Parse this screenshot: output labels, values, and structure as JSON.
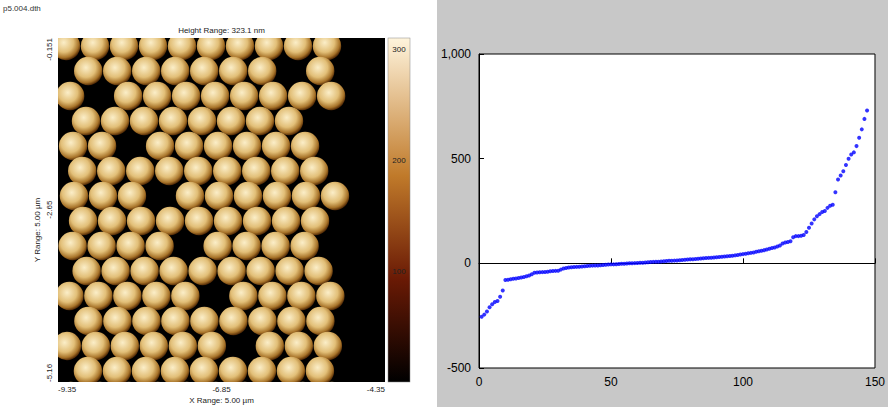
{
  "image_panel": {
    "file_name": "p5.004.dth",
    "title": "Height Range: 323.1 nm",
    "y_axis_label": "Y Range: 5.00 µm",
    "x_axis_label": "X Range: 5.00 µm",
    "xlim": [
      -9.35,
      -4.35
    ],
    "xticks": [
      -9.35,
      -6.85,
      -4.35
    ],
    "ylim": [
      -5.16,
      -0.151
    ],
    "yticks": [
      -0.151,
      -2.65,
      -5.16
    ],
    "colorbar_lim": [
      0,
      310
    ],
    "colorbar_ticks": [
      100,
      200,
      300
    ]
  },
  "chart_data": {
    "type": "scatter",
    "color": "#0000ff",
    "marker": "circle",
    "grid": false,
    "xlim": [
      0,
      150
    ],
    "xticks": [
      0,
      50,
      100,
      150
    ],
    "ylim": [
      -500,
      1000
    ],
    "yticks": [
      -500,
      0,
      500,
      1000
    ],
    "x": [
      1,
      2,
      3,
      4,
      5,
      6,
      7,
      8,
      9,
      10,
      11,
      12,
      13,
      14,
      15,
      16,
      17,
      18,
      19,
      20,
      21,
      22,
      23,
      24,
      25,
      26,
      27,
      28,
      29,
      30,
      31,
      32,
      33,
      34,
      35,
      36,
      37,
      38,
      39,
      40,
      41,
      42,
      43,
      44,
      45,
      46,
      47,
      48,
      49,
      50,
      51,
      52,
      53,
      54,
      55,
      56,
      57,
      58,
      59,
      60,
      61,
      62,
      63,
      64,
      65,
      66,
      67,
      68,
      69,
      70,
      71,
      72,
      73,
      74,
      75,
      76,
      77,
      78,
      79,
      80,
      81,
      82,
      83,
      84,
      85,
      86,
      87,
      88,
      89,
      90,
      91,
      92,
      93,
      94,
      95,
      96,
      97,
      98,
      99,
      100,
      101,
      102,
      103,
      104,
      105,
      106,
      107,
      108,
      109,
      110,
      111,
      112,
      113,
      114,
      115,
      116,
      117,
      118,
      119,
      120,
      121,
      122,
      123,
      124,
      125,
      126,
      127,
      128,
      129,
      130,
      131,
      132,
      133,
      134,
      135,
      136,
      137,
      138,
      139,
      140,
      141,
      142,
      143,
      144,
      145,
      146,
      147
    ],
    "values": [
      -255,
      -245,
      -230,
      -210,
      -195,
      -185,
      -180,
      -160,
      -130,
      -80,
      -78,
      -76,
      -74,
      -72,
      -70,
      -68,
      -65,
      -62,
      -58,
      -52,
      -45,
      -44,
      -43,
      -42,
      -41,
      -40,
      -38,
      -37,
      -36,
      -35,
      -30,
      -25,
      -22,
      -20,
      -19,
      -18,
      -17,
      -16,
      -15,
      -14,
      -13,
      -12,
      -11,
      -10,
      -10,
      -9,
      -8,
      -7,
      -6,
      -5,
      -5,
      -4,
      -3,
      -2,
      -2,
      -1,
      0,
      0,
      1,
      2,
      3,
      3,
      4,
      5,
      6,
      7,
      8,
      8,
      9,
      10,
      11,
      12,
      12,
      13,
      14,
      15,
      16,
      17,
      18,
      19,
      20,
      21,
      22,
      23,
      24,
      25,
      26,
      27,
      28,
      29,
      30,
      31,
      33,
      34,
      35,
      36,
      38,
      40,
      42,
      44,
      46,
      48,
      50,
      52,
      55,
      58,
      60,
      63,
      66,
      70,
      73,
      76,
      80,
      85,
      95,
      100,
      102,
      105,
      125,
      130,
      130,
      132,
      135,
      150,
      170,
      190,
      210,
      225,
      235,
      245,
      250,
      265,
      275,
      280,
      340,
      400,
      420,
      440,
      470,
      500,
      520,
      530,
      560,
      600,
      640,
      690,
      730
    ]
  }
}
